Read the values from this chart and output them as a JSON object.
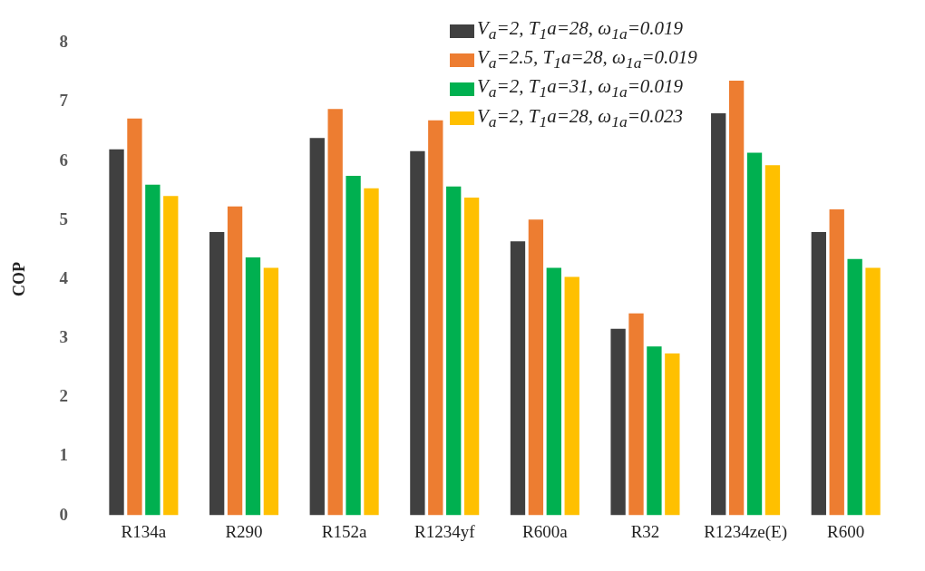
{
  "chart_data": {
    "type": "bar",
    "ylabel": "COP",
    "categories": [
      "R134a",
      "R290",
      "R152a",
      "R1234yf",
      "R600a",
      "R32",
      "R1234ze(E)",
      "R600"
    ],
    "series": [
      {
        "name": "V$_{a}$=2, T$_{1}$a=28, ω$_{1a}$=0.019",
        "color": "#404040",
        "values": [
          6.2,
          4.8,
          6.39,
          6.17,
          4.64,
          3.16,
          6.81,
          4.8
        ]
      },
      {
        "name": "V$_{a}$=2.5, T$_{1}$a=28, ω$_{1a}$=0.019",
        "color": "#ed7d31",
        "values": [
          6.72,
          5.23,
          6.88,
          6.69,
          5.01,
          3.42,
          7.36,
          5.18
        ]
      },
      {
        "name": "V$_{a}$=2, T$_{1}$a=31, ω$_{1a}$=0.019",
        "color": "#00b050",
        "values": [
          5.6,
          4.37,
          5.75,
          5.57,
          4.19,
          2.86,
          6.14,
          4.34
        ]
      },
      {
        "name": "V$_{a}$=2, T$_{1}$a=28, ω$_{1a}$=0.023",
        "color": "#ffc000",
        "values": [
          5.41,
          4.19,
          5.54,
          5.38,
          4.04,
          2.74,
          5.93,
          4.19
        ]
      }
    ],
    "ylim": [
      0,
      8
    ],
    "yticks": [
      0,
      1,
      2,
      3,
      4,
      5,
      6,
      7,
      8
    ],
    "grid": false,
    "legend": "top right"
  }
}
